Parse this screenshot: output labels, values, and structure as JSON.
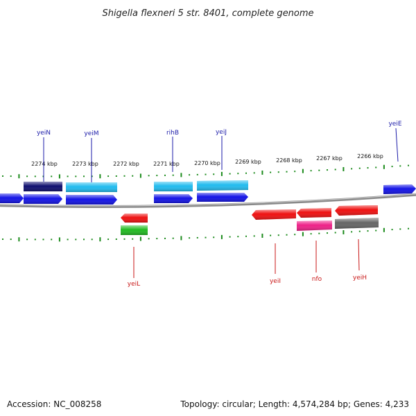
{
  "title": "Shigella flexneri 5 str. 8401, complete genome",
  "footer": {
    "accession": "Accession: NC_008258",
    "summary": "Topology: circular; Length: 4,574,284 bp; Genes: 4,233"
  },
  "colors": {
    "backbone": "#8a8a8a",
    "ticks": "#1a8a1a",
    "forward_label": "#1a1aa8",
    "reverse_label": "#c81616"
  },
  "scale_labels": [
    "2274 kbp",
    "2273 kbp",
    "2272 kbp",
    "2271 kbp",
    "2270 kbp",
    "2269 kbp",
    "2268 kbp",
    "2267 kbp",
    "2266 kbp"
  ],
  "gene_labels": [
    {
      "name": "yeiN",
      "strand": "+"
    },
    {
      "name": "yeiM",
      "strand": "+"
    },
    {
      "name": "rihB",
      "strand": "+"
    },
    {
      "name": "yeiJ",
      "strand": "+"
    },
    {
      "name": "yeiE",
      "strand": "+"
    },
    {
      "name": "yeiL",
      "strand": "-"
    },
    {
      "name": "yeiI",
      "strand": "-"
    },
    {
      "name": "nfo",
      "strand": "-"
    },
    {
      "name": "yeiH",
      "strand": "-"
    }
  ],
  "features": [
    {
      "kind": "gene",
      "strand": "+",
      "color": "#1414e6"
    },
    {
      "kind": "gene",
      "strand": "+",
      "color": "#1414e6"
    },
    {
      "kind": "gene",
      "strand": "+",
      "color": "#1414e6"
    },
    {
      "kind": "gene",
      "strand": "+",
      "color": "#1414e6"
    },
    {
      "kind": "gene",
      "strand": "+",
      "color": "#1414e6"
    },
    {
      "kind": "gene",
      "strand": "+",
      "color": "#1414e6"
    },
    {
      "kind": "cds",
      "color": "#101070"
    },
    {
      "kind": "cds",
      "color": "#22bbee"
    },
    {
      "kind": "cds",
      "color": "#22bbee"
    },
    {
      "kind": "cds",
      "color": "#22bbee"
    },
    {
      "kind": "gene",
      "strand": "-",
      "color": "#ee1111"
    },
    {
      "kind": "gene",
      "strand": "-",
      "color": "#ee1111"
    },
    {
      "kind": "gene",
      "strand": "-",
      "color": "#ee1111"
    },
    {
      "kind": "gene",
      "strand": "-",
      "color": "#ee1111"
    },
    {
      "kind": "cds",
      "color": "#22bb22"
    },
    {
      "kind": "cds",
      "color": "#ee2288"
    },
    {
      "kind": "cds",
      "color": "#666666"
    }
  ]
}
